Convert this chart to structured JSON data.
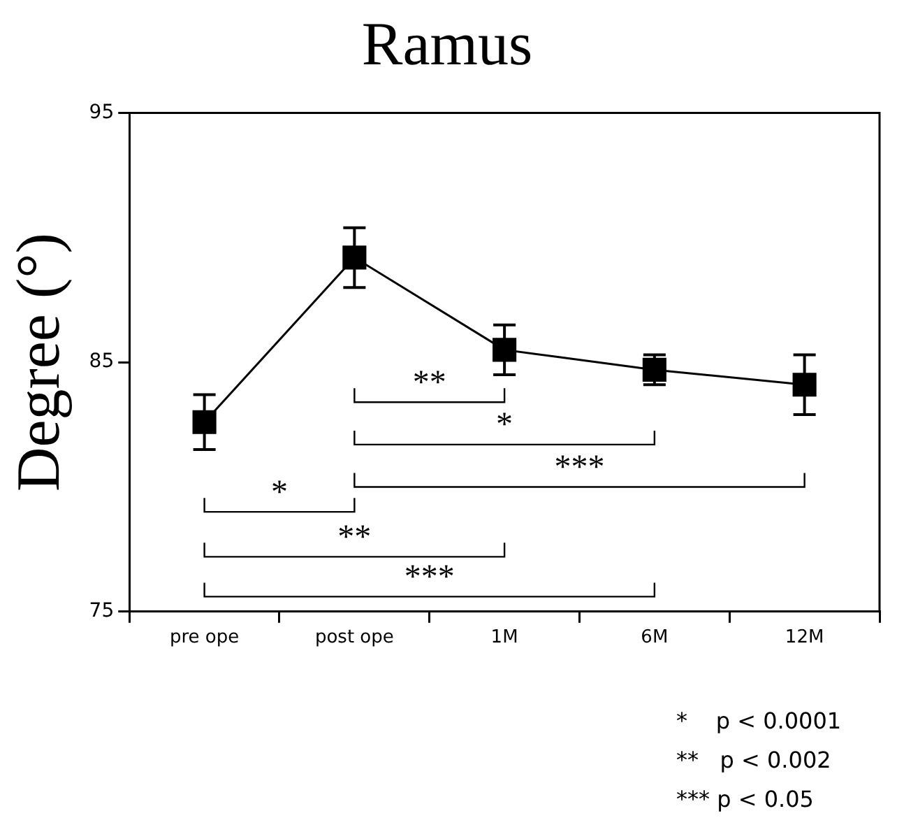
{
  "chart_data": {
    "type": "line",
    "title": "Ramus",
    "ylabel": "Degree (°)",
    "categories": [
      "pre ope",
      "post ope",
      "1M",
      "6M",
      "12M"
    ],
    "values": [
      82.6,
      89.2,
      85.5,
      84.7,
      84.1
    ],
    "errors": [
      1.1,
      1.2,
      1.0,
      0.6,
      1.2
    ],
    "color": "#000000",
    "marker": "square",
    "line_style": "solid",
    "ylim": [
      75,
      95
    ],
    "yticks": [
      75,
      85,
      95
    ],
    "grid": false,
    "legend": false,
    "annotations": [
      "**",
      "*",
      "***",
      "*",
      "**",
      "***",
      "*    p < 0.0001",
      "**   p < 0.002",
      "*** p < 0.05"
    ]
  }
}
